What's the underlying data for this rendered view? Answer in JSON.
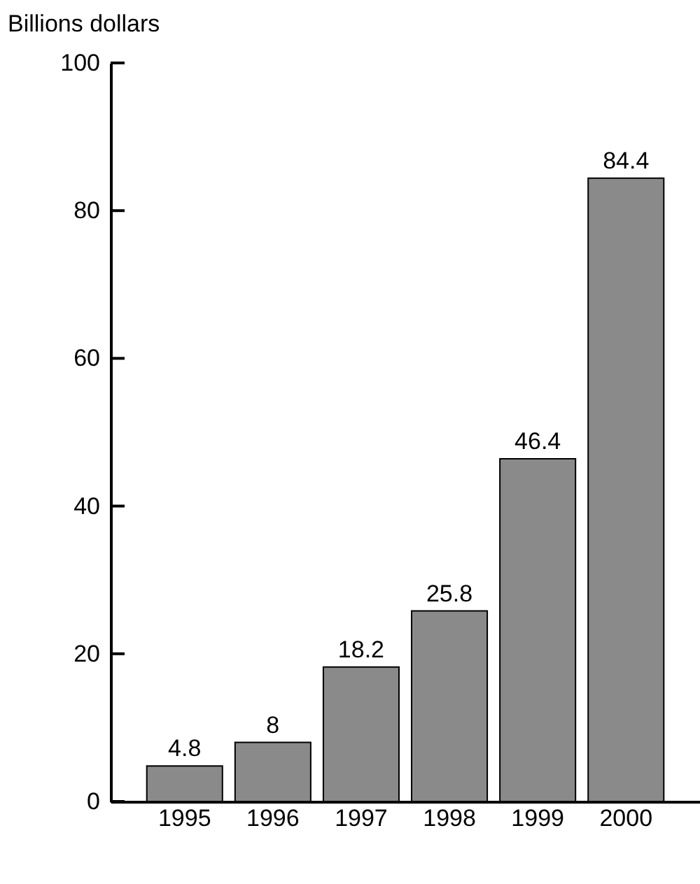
{
  "chart_data": {
    "type": "bar",
    "ylabel": "Billions dollars",
    "categories": [
      "1995",
      "1996",
      "1997",
      "1998",
      "1999",
      "2000"
    ],
    "values": [
      4.8,
      8,
      18.2,
      25.8,
      46.4,
      84.4
    ],
    "color": "#8a8a8a",
    "ylim": [
      0,
      100
    ],
    "yticks": [
      0,
      20,
      40,
      60,
      80,
      100
    ],
    "data_labels": true
  }
}
